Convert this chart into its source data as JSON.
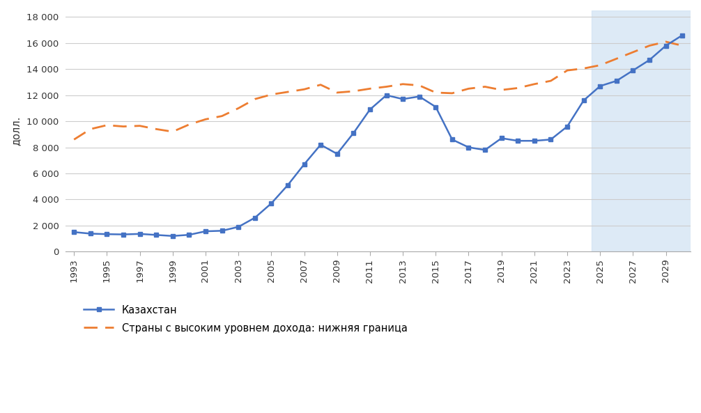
{
  "kazakhstan_years": [
    1993,
    1994,
    1995,
    1996,
    1997,
    1998,
    1999,
    2000,
    2001,
    2002,
    2003,
    2004,
    2005,
    2006,
    2007,
    2008,
    2009,
    2010,
    2011,
    2012,
    2013,
    2014,
    2015,
    2016,
    2017,
    2018,
    2019,
    2020,
    2021,
    2022,
    2023,
    2024,
    2025,
    2026,
    2027,
    2028,
    2029,
    2030
  ],
  "kazakhstan_values": [
    1500,
    1380,
    1340,
    1320,
    1360,
    1280,
    1200,
    1290,
    1560,
    1600,
    1900,
    2600,
    3700,
    5100,
    6700,
    8200,
    7500,
    9100,
    10900,
    12000,
    11700,
    11900,
    11100,
    8600,
    8000,
    7800,
    8700,
    8500,
    8500,
    8600,
    9600,
    11600,
    12700,
    13100,
    13900,
    14700,
    15800,
    16600
  ],
  "hic_years": [
    1993,
    1994,
    1995,
    1996,
    1997,
    1998,
    1999,
    2000,
    2001,
    2002,
    2003,
    2004,
    2005,
    2006,
    2007,
    2008,
    2009,
    2010,
    2011,
    2012,
    2013,
    2014,
    2015,
    2016,
    2017,
    2018,
    2019,
    2020,
    2021,
    2022,
    2023,
    2024,
    2025,
    2026,
    2027,
    2028,
    2029,
    2030
  ],
  "hic_values": [
    8600,
    9400,
    9700,
    9600,
    9650,
    9400,
    9200,
    9750,
    10150,
    10400,
    11000,
    11700,
    12050,
    12250,
    12450,
    12800,
    12200,
    12300,
    12500,
    12650,
    12850,
    12750,
    12200,
    12150,
    12500,
    12650,
    12400,
    12550,
    12850,
    13100,
    13900,
    14050,
    14300,
    14800,
    15300,
    15800,
    16100,
    15800
  ],
  "forecast_start_year": 2024.5,
  "shading_color": "#cfe2f3",
  "shading_alpha": 0.7,
  "kaz_color": "#4472C4",
  "hic_color": "#ED7D31",
  "ylabel": "долл.",
  "ylim": [
    0,
    18500
  ],
  "yticks": [
    0,
    2000,
    4000,
    6000,
    8000,
    10000,
    12000,
    14000,
    16000,
    18000
  ],
  "ytick_labels": [
    "0",
    "2 000",
    "4 000",
    "6 000",
    "8 000",
    "10 000",
    "12 000",
    "14 000",
    "16 000",
    "18 000"
  ],
  "legend_kaz": "Казахстан",
  "legend_hic": "Страны с высоким уровнем дохода: нижняя граница",
  "xtick_years": [
    1993,
    1995,
    1997,
    1999,
    2001,
    2003,
    2005,
    2007,
    2009,
    2011,
    2013,
    2015,
    2017,
    2019,
    2021,
    2023,
    2025,
    2027,
    2029
  ],
  "xmin": 1992.5,
  "xmax": 2030.5
}
